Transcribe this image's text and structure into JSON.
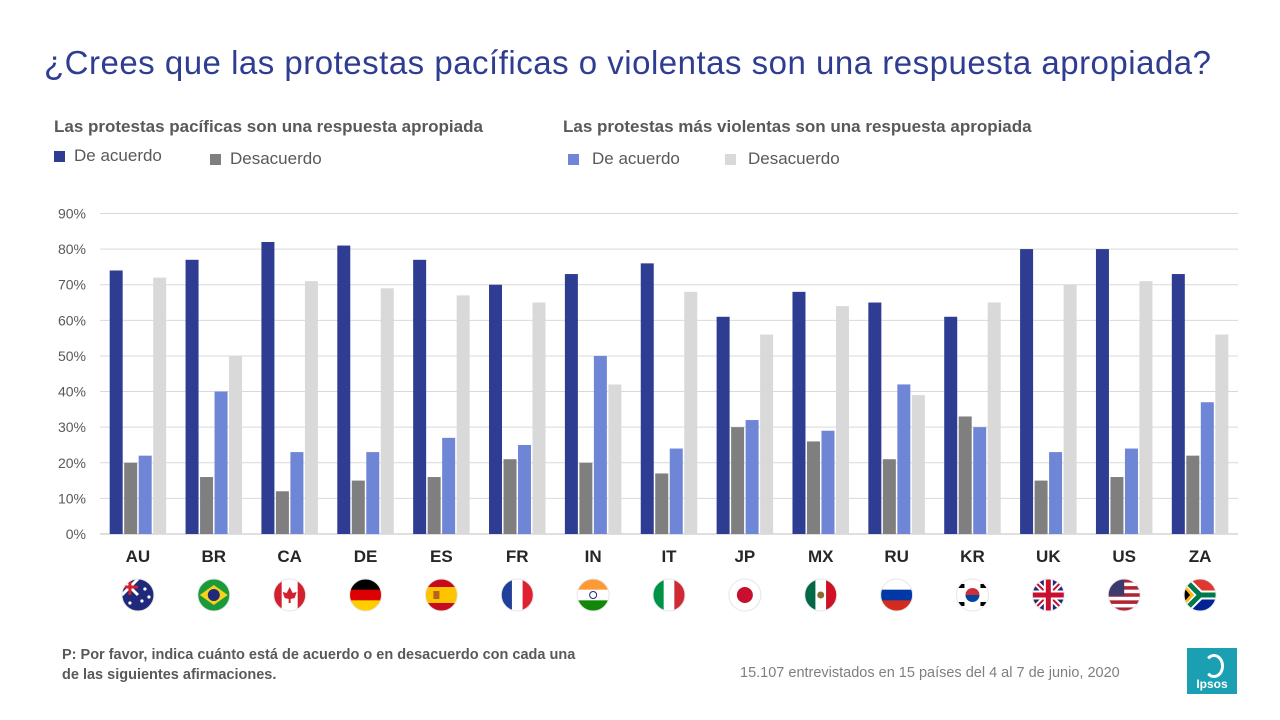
{
  "title": "¿Crees que las protestas pacíficas o violentas son una respuesta apropiada?",
  "legend": {
    "group1_title": "Las protestas pacíficas son una respuesta apropiada",
    "group1_agree": "De acuerdo",
    "group1_disagree": "Desacuerdo",
    "group2_title": "Las protestas más violentas son una respuesta apropiada",
    "group2_agree": "De acuerdo",
    "group2_disagree": "Desacuerdo"
  },
  "colors": {
    "peaceful_agree": "#2e3d92",
    "peaceful_disagree": "#7f7f7f",
    "violent_agree": "#6f86d6",
    "violent_disagree": "#d9d9d9",
    "grid": "#d9d9d9",
    "title": "#2e3d92",
    "logo": "#1a9fb3"
  },
  "footnote": "P: Por favor, indica cuánto está de acuerdo o en desacuerdo con cada una de las siguientes afirmaciones.",
  "sample_note": "15.107 entrevistados en 15 países del 4 al 7 de junio, 2020",
  "logo_text": "Ipsos",
  "chart_data": {
    "type": "bar",
    "title": "¿Crees que las protestas pacíficas o violentas son una respuesta apropiada?",
    "xlabel": "",
    "ylabel": "",
    "ylim": [
      0,
      90
    ],
    "yticks": [
      0,
      10,
      20,
      30,
      40,
      50,
      60,
      70,
      80,
      90
    ],
    "ytick_labels": [
      "0%",
      "10%",
      "20%",
      "30%",
      "40%",
      "50%",
      "60%",
      "70%",
      "80%",
      "90%"
    ],
    "grid": true,
    "legend_position": "top-left",
    "categories": [
      "AU",
      "BR",
      "CA",
      "DE",
      "ES",
      "FR",
      "IN",
      "IT",
      "JP",
      "MX",
      "RU",
      "KR",
      "UK",
      "US",
      "ZA"
    ],
    "flags": [
      "australia-flag",
      "brazil-flag",
      "canada-flag",
      "germany-flag",
      "spain-flag",
      "france-flag",
      "india-flag",
      "italy-flag",
      "japan-flag",
      "mexico-flag",
      "russia-flag",
      "south-korea-flag",
      "uk-flag",
      "usa-flag",
      "south-africa-flag"
    ],
    "series": [
      {
        "name": "Pacíficas - De acuerdo",
        "values": [
          74,
          77,
          82,
          81,
          77,
          70,
          73,
          76,
          61,
          68,
          65,
          61,
          80,
          80,
          73
        ]
      },
      {
        "name": "Pacíficas - Desacuerdo",
        "values": [
          20,
          16,
          12,
          15,
          16,
          21,
          20,
          17,
          30,
          26,
          21,
          33,
          15,
          16,
          22
        ]
      },
      {
        "name": "Violentas - De acuerdo",
        "values": [
          22,
          40,
          23,
          23,
          27,
          25,
          50,
          24,
          32,
          29,
          42,
          30,
          23,
          24,
          37
        ]
      },
      {
        "name": "Violentas - Desacuerdo",
        "values": [
          72,
          50,
          71,
          69,
          67,
          65,
          42,
          68,
          56,
          64,
          39,
          65,
          70,
          71,
          56
        ]
      }
    ]
  }
}
